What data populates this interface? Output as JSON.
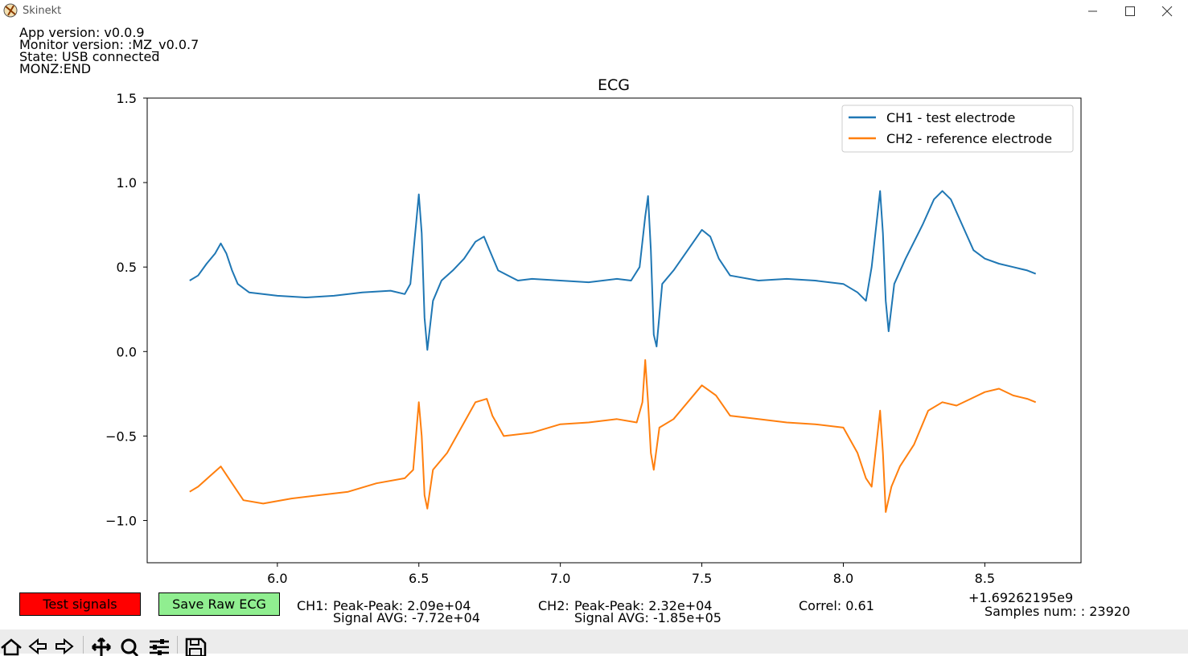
{
  "window": {
    "title": "Skinekt"
  },
  "info": {
    "app_version": "App version: v0.0.9",
    "monitor_version": "Monitor version: :MZ_v0.0.7",
    "state": "State: USB connected",
    "monz": "MONZ:END"
  },
  "buttons": {
    "test_signals": "Test signals",
    "save_raw": "Save Raw ECG",
    "test_color": "#ff0000",
    "save_color": "#90ee90"
  },
  "stats": {
    "ch1_label": "CH1:",
    "ch1_pp": "Peak-Peak: 2.09e+04",
    "ch1_avg": "Signal AVG: -7.72e+04",
    "ch2_label": "CH2:",
    "ch2_pp": "Peak-Peak: 2.32e+04",
    "ch2_avg": "Signal AVG: -1.85e+05",
    "correl": "Correl: 0.61",
    "offset": "+1.69262195e9",
    "samples": "Samples num: : 23920"
  },
  "toolbar": {
    "icons": [
      "home-icon",
      "back-icon",
      "forward-icon",
      "pan-icon",
      "zoom-icon",
      "configure-icon",
      "save-icon"
    ]
  },
  "chart_data": {
    "type": "line",
    "title": "ECG",
    "xlim": [
      5.54,
      8.84
    ],
    "ylim": [
      -1.25,
      1.5
    ],
    "xticks": [
      "6.0",
      "6.5",
      "7.0",
      "7.5",
      "8.0",
      "8.5"
    ],
    "xtick_values": [
      6.0,
      6.5,
      7.0,
      7.5,
      8.0,
      8.5
    ],
    "yticks": [
      "1.5",
      "1.0",
      "0.5",
      "0.0",
      "−0.5",
      "−1.0"
    ],
    "ytick_values": [
      1.5,
      1.0,
      0.5,
      0.0,
      -0.5,
      -1.0
    ],
    "legend_position": "top-right",
    "series": [
      {
        "name": "CH1 - test electrode",
        "color": "#1f77b4",
        "points": [
          [
            5.69,
            0.42
          ],
          [
            5.72,
            0.45
          ],
          [
            5.75,
            0.52
          ],
          [
            5.78,
            0.58
          ],
          [
            5.8,
            0.64
          ],
          [
            5.82,
            0.58
          ],
          [
            5.84,
            0.48
          ],
          [
            5.86,
            0.4
          ],
          [
            5.9,
            0.35
          ],
          [
            6.0,
            0.33
          ],
          [
            6.1,
            0.32
          ],
          [
            6.2,
            0.33
          ],
          [
            6.3,
            0.35
          ],
          [
            6.4,
            0.36
          ],
          [
            6.45,
            0.34
          ],
          [
            6.47,
            0.4
          ],
          [
            6.49,
            0.75
          ],
          [
            6.5,
            0.93
          ],
          [
            6.51,
            0.7
          ],
          [
            6.52,
            0.2
          ],
          [
            6.53,
            0.01
          ],
          [
            6.55,
            0.3
          ],
          [
            6.58,
            0.42
          ],
          [
            6.62,
            0.48
          ],
          [
            6.66,
            0.55
          ],
          [
            6.7,
            0.65
          ],
          [
            6.73,
            0.68
          ],
          [
            6.75,
            0.6
          ],
          [
            6.78,
            0.48
          ],
          [
            6.85,
            0.42
          ],
          [
            6.9,
            0.43
          ],
          [
            7.0,
            0.42
          ],
          [
            7.1,
            0.41
          ],
          [
            7.2,
            0.43
          ],
          [
            7.25,
            0.42
          ],
          [
            7.28,
            0.5
          ],
          [
            7.3,
            0.8
          ],
          [
            7.31,
            0.92
          ],
          [
            7.32,
            0.6
          ],
          [
            7.33,
            0.1
          ],
          [
            7.34,
            0.03
          ],
          [
            7.36,
            0.4
          ],
          [
            7.4,
            0.48
          ],
          [
            7.45,
            0.6
          ],
          [
            7.5,
            0.72
          ],
          [
            7.53,
            0.68
          ],
          [
            7.56,
            0.55
          ],
          [
            7.6,
            0.45
          ],
          [
            7.7,
            0.42
          ],
          [
            7.8,
            0.43
          ],
          [
            7.9,
            0.42
          ],
          [
            8.0,
            0.4
          ],
          [
            8.05,
            0.35
          ],
          [
            8.08,
            0.3
          ],
          [
            8.1,
            0.5
          ],
          [
            8.13,
            0.95
          ],
          [
            8.14,
            0.7
          ],
          [
            8.15,
            0.3
          ],
          [
            8.16,
            0.12
          ],
          [
            8.18,
            0.4
          ],
          [
            8.22,
            0.55
          ],
          [
            8.28,
            0.75
          ],
          [
            8.32,
            0.9
          ],
          [
            8.35,
            0.95
          ],
          [
            8.38,
            0.9
          ],
          [
            8.42,
            0.75
          ],
          [
            8.46,
            0.6
          ],
          [
            8.5,
            0.55
          ],
          [
            8.55,
            0.52
          ],
          [
            8.6,
            0.5
          ],
          [
            8.65,
            0.48
          ],
          [
            8.68,
            0.46
          ]
        ]
      },
      {
        "name": "CH2 - reference electrode",
        "color": "#ff7f0e",
        "points": [
          [
            5.69,
            -0.83
          ],
          [
            5.72,
            -0.8
          ],
          [
            5.76,
            -0.74
          ],
          [
            5.8,
            -0.68
          ],
          [
            5.84,
            -0.78
          ],
          [
            5.88,
            -0.88
          ],
          [
            5.95,
            -0.9
          ],
          [
            6.05,
            -0.87
          ],
          [
            6.15,
            -0.85
          ],
          [
            6.25,
            -0.83
          ],
          [
            6.35,
            -0.78
          ],
          [
            6.45,
            -0.75
          ],
          [
            6.48,
            -0.7
          ],
          [
            6.5,
            -0.3
          ],
          [
            6.51,
            -0.5
          ],
          [
            6.52,
            -0.85
          ],
          [
            6.53,
            -0.93
          ],
          [
            6.55,
            -0.7
          ],
          [
            6.6,
            -0.6
          ],
          [
            6.65,
            -0.45
          ],
          [
            6.7,
            -0.3
          ],
          [
            6.74,
            -0.28
          ],
          [
            6.76,
            -0.38
          ],
          [
            6.8,
            -0.5
          ],
          [
            6.9,
            -0.48
          ],
          [
            7.0,
            -0.43
          ],
          [
            7.1,
            -0.42
          ],
          [
            7.2,
            -0.4
          ],
          [
            7.27,
            -0.42
          ],
          [
            7.29,
            -0.3
          ],
          [
            7.3,
            -0.05
          ],
          [
            7.31,
            -0.3
          ],
          [
            7.32,
            -0.6
          ],
          [
            7.33,
            -0.7
          ],
          [
            7.35,
            -0.45
          ],
          [
            7.4,
            -0.4
          ],
          [
            7.45,
            -0.3
          ],
          [
            7.5,
            -0.2
          ],
          [
            7.55,
            -0.26
          ],
          [
            7.6,
            -0.38
          ],
          [
            7.7,
            -0.4
          ],
          [
            7.8,
            -0.42
          ],
          [
            7.9,
            -0.43
          ],
          [
            8.0,
            -0.45
          ],
          [
            8.05,
            -0.6
          ],
          [
            8.08,
            -0.75
          ],
          [
            8.1,
            -0.8
          ],
          [
            8.13,
            -0.35
          ],
          [
            8.14,
            -0.6
          ],
          [
            8.15,
            -0.95
          ],
          [
            8.17,
            -0.8
          ],
          [
            8.2,
            -0.68
          ],
          [
            8.25,
            -0.55
          ],
          [
            8.3,
            -0.35
          ],
          [
            8.35,
            -0.3
          ],
          [
            8.4,
            -0.32
          ],
          [
            8.45,
            -0.28
          ],
          [
            8.5,
            -0.24
          ],
          [
            8.55,
            -0.22
          ],
          [
            8.6,
            -0.26
          ],
          [
            8.65,
            -0.28
          ],
          [
            8.68,
            -0.3
          ]
        ]
      }
    ]
  }
}
